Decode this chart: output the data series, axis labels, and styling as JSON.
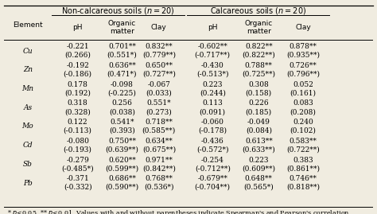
{
  "elements": [
    "Cu",
    "Zn",
    "Mn",
    "As",
    "Mo",
    "Cd",
    "Sb",
    "Pb"
  ],
  "data": [
    [
      "-0.221",
      "0.701**",
      "0.832**",
      "-0.602**",
      "0.822**",
      "0.878**",
      "(0.266)",
      "(0.551*)",
      "(0.779**)",
      "(-0.717**)",
      "(0.822**)",
      "(0.935**)"
    ],
    [
      "-0.192",
      "0.636**",
      "0.650**",
      "-0.430",
      "0.788**",
      "0.726**",
      "(-0.186)",
      "(0.471*)",
      "(0.727**)",
      "(-0.513*)",
      "(0.725**)",
      "(0.796**)"
    ],
    [
      "0.178",
      "-0.098",
      "-0.067",
      "0.223",
      "0.308",
      "0.052",
      "(0.192)",
      "(-0.225)",
      "(0.033)",
      "(0.244)",
      "(0.158)",
      "(0.161)"
    ],
    [
      "0.318",
      "0.256",
      "0.551*",
      "0.113",
      "0.226",
      "0.083",
      "(0.328)",
      "(0.038)",
      "(0.273)",
      "(0.091)",
      "(0.185)",
      "(0.208)"
    ],
    [
      "0.122",
      "0.541*",
      "0.718**",
      "-0.060",
      "-0.049",
      "0.240",
      "(-0.113)",
      "(0.393)",
      "(0.585**)",
      "(-0.178)",
      "(0.084)",
      "(0.102)"
    ],
    [
      "-0.080",
      "0.750**",
      "0.634**",
      "-0.436",
      "0.613**",
      "0.583**",
      "(-0.193)",
      "(0.639**)",
      "(0.675**)",
      "(-0.572*)",
      "(0.633**)",
      "(0.722**)"
    ],
    [
      "-0.279",
      "0.620**",
      "0.971**",
      "-0.254",
      "0.223",
      "0.383",
      "(-0.485*)",
      "(0.599**)",
      "(0.842**)",
      "(-0.712**)",
      "(0.609**)",
      "(0.861**)"
    ],
    [
      "-0.371",
      "0.686**",
      "0.768**",
      "-0.679**",
      "0.648**",
      "0.746**",
      "(-0.332)",
      "(0.590**)",
      "(0.536*)",
      "(-0.704**)",
      "(0.565*)",
      "(0.818**)"
    ]
  ],
  "bg_color": "#f0ece0",
  "font_size": 6.5,
  "footnote_size": 5.8,
  "header_size": 7.0
}
